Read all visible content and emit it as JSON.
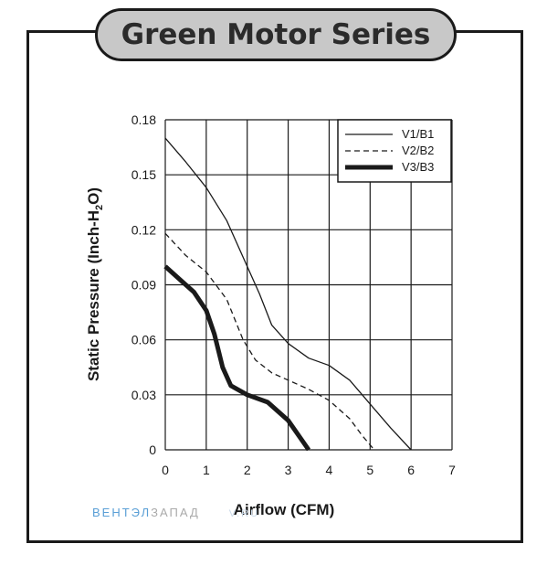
{
  "header": {
    "title": "Green Motor Series"
  },
  "watermark": {
    "part1": "ВЕНТЭЛ",
    "part2": "ЗАПАД",
    "part3": "V.RU"
  },
  "chart_data": {
    "type": "line",
    "title": "",
    "xlabel": "Airflow (CFM)",
    "ylabel_main": "Static Pressure (Inch-H",
    "ylabel_sub": "2",
    "ylabel_end": "O)",
    "xlim": [
      0,
      7
    ],
    "ylim": [
      0,
      0.18
    ],
    "x_ticks": [
      "0",
      "1",
      "2",
      "3",
      "4",
      "5",
      "6",
      "7"
    ],
    "y_ticks": [
      "0",
      "0.03",
      "0.06",
      "0.09",
      "0.12",
      "0.15",
      "0.18"
    ],
    "grid": true,
    "legend_position": "top-right",
    "series": [
      {
        "name": "V1/B1",
        "style": "thin",
        "points": [
          [
            0,
            0.17
          ],
          [
            0.5,
            0.157
          ],
          [
            1,
            0.143
          ],
          [
            1.5,
            0.125
          ],
          [
            2,
            0.1
          ],
          [
            2.3,
            0.085
          ],
          [
            2.6,
            0.068
          ],
          [
            3,
            0.058
          ],
          [
            3.5,
            0.05
          ],
          [
            4,
            0.046
          ],
          [
            4.5,
            0.038
          ],
          [
            5,
            0.025
          ],
          [
            5.5,
            0.012
          ],
          [
            6,
            0
          ]
        ]
      },
      {
        "name": "V2/B2",
        "style": "dashed",
        "points": [
          [
            0,
            0.118
          ],
          [
            0.5,
            0.106
          ],
          [
            1,
            0.097
          ],
          [
            1.5,
            0.082
          ],
          [
            1.9,
            0.06
          ],
          [
            2.2,
            0.049
          ],
          [
            2.6,
            0.042
          ],
          [
            3,
            0.038
          ],
          [
            3.5,
            0.033
          ],
          [
            4,
            0.027
          ],
          [
            4.5,
            0.017
          ],
          [
            4.8,
            0.008
          ],
          [
            5.1,
            0
          ]
        ]
      },
      {
        "name": "V3/B3",
        "style": "thick",
        "points": [
          [
            0,
            0.1
          ],
          [
            0.35,
            0.093
          ],
          [
            0.7,
            0.086
          ],
          [
            1,
            0.076
          ],
          [
            1.2,
            0.063
          ],
          [
            1.4,
            0.045
          ],
          [
            1.6,
            0.035
          ],
          [
            2,
            0.03
          ],
          [
            2.5,
            0.026
          ],
          [
            3,
            0.016
          ],
          [
            3.5,
            0
          ]
        ]
      }
    ]
  }
}
